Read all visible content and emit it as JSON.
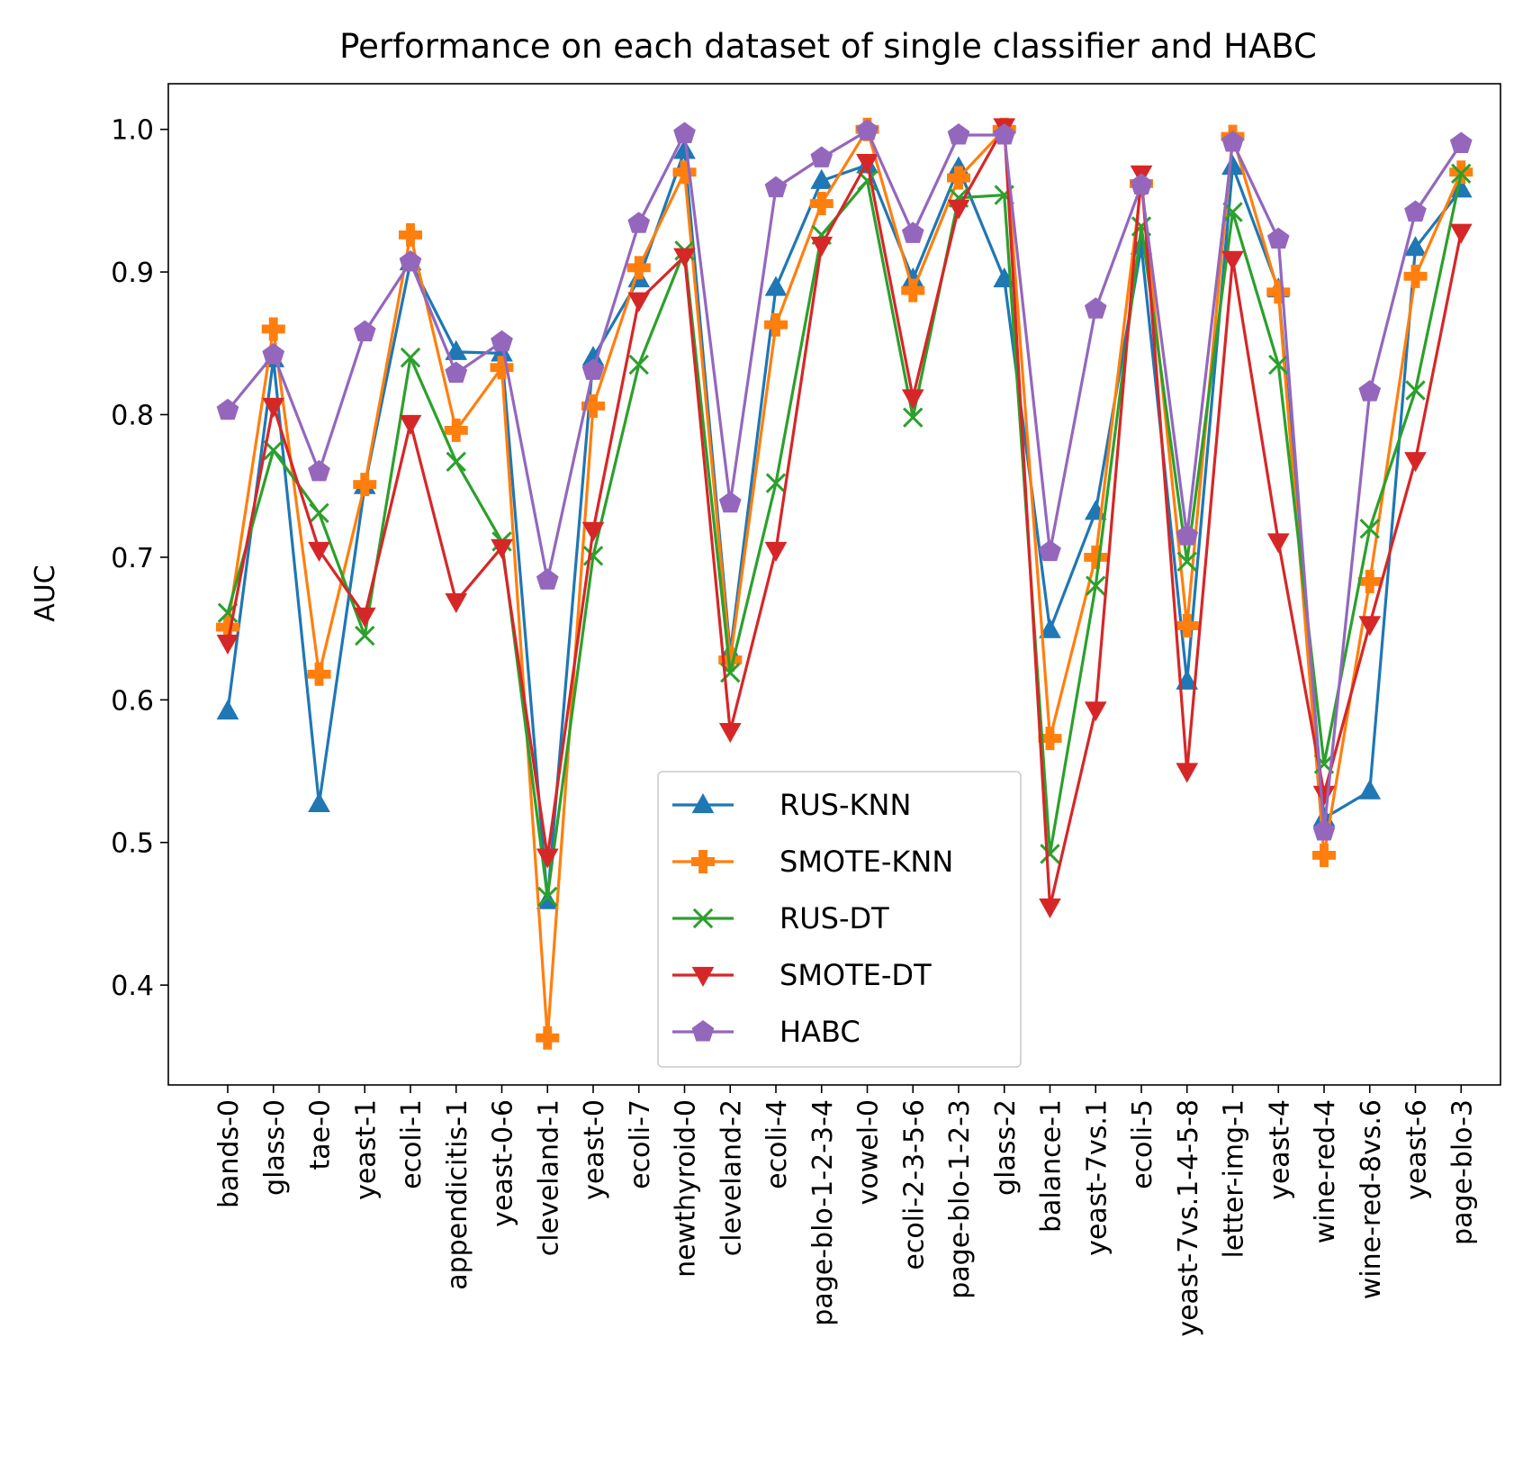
{
  "chart_data": {
    "type": "line",
    "title": "Performance on each dataset of single classifier and HABC",
    "xlabel": "",
    "ylabel": "AUC",
    "ylim": [
      0.33,
      1.032
    ],
    "yticks": [
      0.4,
      0.5,
      0.6,
      0.7,
      0.8,
      0.9,
      1.0
    ],
    "ytick_labels": [
      "0.4",
      "0.5",
      "0.6",
      "0.7",
      "0.8",
      "0.9",
      "1.0"
    ],
    "grid": false,
    "legend_position": "lower-center",
    "categories": [
      "bands-0",
      "glass-0",
      "tae-0",
      "yeast-1",
      "ecoli-1",
      "appendicitis-1",
      "yeast-0-6",
      "cleveland-1",
      "yeast-0",
      "ecoli-7",
      "newthyroid-0",
      "cleveland-2",
      "ecoli-4",
      "page-blo-1-2-3-4",
      "vowel-0",
      "ecoli-2-3-5-6",
      "page-blo-1-2-3",
      "glass-2",
      "balance-1",
      "yeast-7vs.1",
      "ecoli-5",
      "yeast-7vs.1-4-5-8",
      "letter-img-1",
      "yeast-4",
      "wine-red-4",
      "wine-red-8vs.6",
      "yeast-6",
      "page-blo-3"
    ],
    "series": [
      {
        "name": "RUS-KNN",
        "color": "#1f77b4",
        "marker": "triangle-up",
        "values": [
          0.592,
          0.839,
          0.527,
          0.75,
          0.907,
          0.844,
          0.843,
          0.459,
          0.84,
          0.895,
          0.985,
          0.633,
          0.889,
          0.964,
          0.975,
          0.895,
          0.973,
          0.895,
          0.649,
          0.732,
          0.918,
          0.613,
          0.974,
          0.888,
          0.517,
          0.536,
          0.917,
          0.958
        ]
      },
      {
        "name": "SMOTE-KNN",
        "color": "#ff7f0e",
        "marker": "plus",
        "values": [
          0.651,
          0.86,
          0.618,
          0.751,
          0.926,
          0.789,
          0.833,
          0.363,
          0.806,
          0.903,
          0.97,
          0.628,
          0.863,
          0.948,
          1.0,
          0.887,
          0.966,
          1.0,
          0.573,
          0.7,
          0.962,
          0.652,
          0.995,
          0.886,
          0.491,
          0.683,
          0.897,
          0.97
        ]
      },
      {
        "name": "RUS-DT",
        "color": "#2ca02c",
        "marker": "x",
        "values": [
          0.661,
          0.775,
          0.731,
          0.645,
          0.84,
          0.767,
          0.711,
          0.462,
          0.701,
          0.835,
          0.915,
          0.619,
          0.752,
          0.926,
          0.964,
          0.798,
          0.952,
          0.954,
          0.492,
          0.68,
          0.932,
          0.697,
          0.942,
          0.835,
          0.555,
          0.72,
          0.817,
          0.969
        ]
      },
      {
        "name": "SMOTE-DT",
        "color": "#d62728",
        "marker": "triangle-down",
        "values": [
          0.64,
          0.806,
          0.705,
          0.659,
          0.794,
          0.669,
          0.707,
          0.49,
          0.719,
          0.88,
          0.911,
          0.578,
          0.705,
          0.919,
          0.977,
          0.812,
          0.945,
          1.002,
          0.455,
          0.593,
          0.969,
          0.55,
          0.909,
          0.711,
          0.534,
          0.653,
          0.768,
          0.928
        ]
      },
      {
        "name": "HABC",
        "color": "#9467bd",
        "marker": "pentagon",
        "values": [
          0.803,
          0.842,
          0.76,
          0.858,
          0.907,
          0.829,
          0.851,
          0.684,
          0.831,
          0.934,
          0.997,
          0.738,
          0.959,
          0.98,
          0.999,
          0.927,
          0.996,
          0.996,
          0.704,
          0.874,
          0.961,
          0.715,
          0.991,
          0.923,
          0.508,
          0.816,
          0.942,
          0.99
        ]
      }
    ]
  }
}
